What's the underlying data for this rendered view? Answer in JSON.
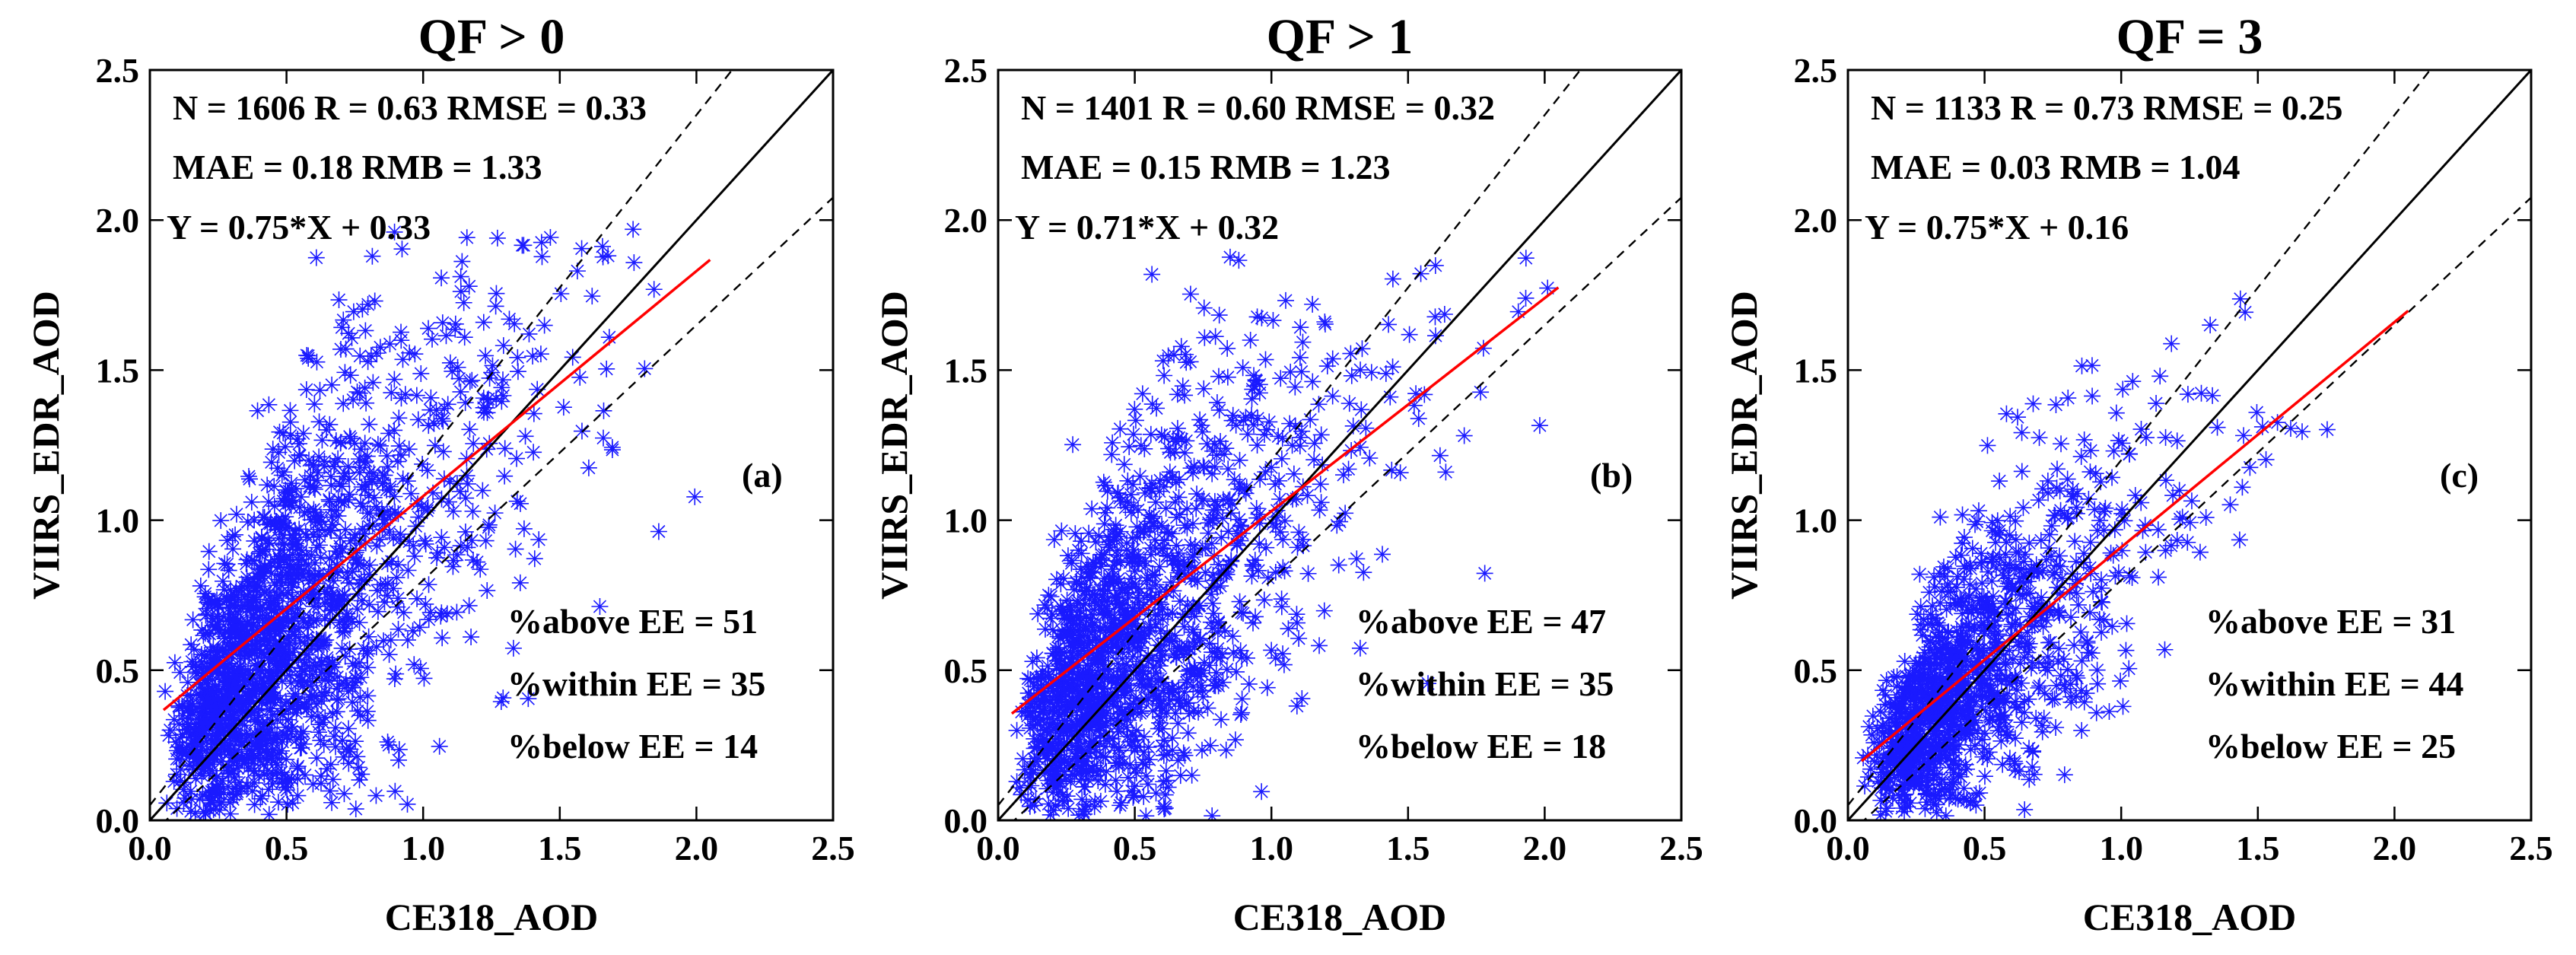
{
  "chart_data": [
    {
      "type": "scatter",
      "title": "QF > 0",
      "panel_label": "(a)",
      "xlabel": "CE318_AOD",
      "ylabel": "VIIRS_EDR_AOD",
      "xlim": [
        0.0,
        2.5
      ],
      "ylim": [
        0.0,
        2.5
      ],
      "xticks": [
        "0.0",
        "0.5",
        "1.0",
        "1.5",
        "2.0",
        "2.5"
      ],
      "yticks": [
        "0.0",
        "0.5",
        "1.0",
        "1.5",
        "2.0",
        "2.5"
      ],
      "stats_line1": "N = 1606  R = 0.63  RMSE = 0.33",
      "stats_line2": "MAE = 0.18   RMB = 1.33",
      "equation": "Y = 0.75*X + 0.33",
      "pct_above": "%above EE = 51",
      "pct_within": "%within EE = 35",
      "pct_below": "%below EE = 14",
      "n_points": 1606,
      "fit": {
        "slope": 0.75,
        "intercept": 0.33,
        "x_range": [
          0.05,
          2.05
        ]
      },
      "ee": {
        "upper": [
          1.15,
          0.05
        ],
        "lower": [
          0.85,
          -0.05
        ]
      },
      "scatter": {
        "x_median": 0.48,
        "x_sigma": 0.62,
        "scatter_sigma": 0.33,
        "y_bias": 0.1,
        "x_max": 2.05,
        "y_max": 2.0,
        "seed": 11
      }
    },
    {
      "type": "scatter",
      "title": "QF > 1",
      "panel_label": "(b)",
      "xlabel": "CE318_AOD",
      "ylabel": "VIIRS_EDR_AOD",
      "xlim": [
        0.0,
        2.5
      ],
      "ylim": [
        0.0,
        2.5
      ],
      "xticks": [
        "0.0",
        "0.5",
        "1.0",
        "1.5",
        "2.0",
        "2.5"
      ],
      "yticks": [
        "0.0",
        "0.5",
        "1.0",
        "1.5",
        "2.0",
        "2.5"
      ],
      "stats_line1": "N = 1401 R = 0.60 RMSE = 0.32",
      "stats_line2": "MAE = 0.15   RMB = 1.23",
      "equation": "Y = 0.71*X + 0.32",
      "pct_above": "%above EE = 47",
      "pct_within": "%within EE = 35",
      "pct_below": "%below EE = 18",
      "n_points": 1401,
      "fit": {
        "slope": 0.71,
        "intercept": 0.32,
        "x_range": [
          0.05,
          2.05
        ]
      },
      "ee": {
        "upper": [
          1.15,
          0.05
        ],
        "lower": [
          0.85,
          -0.05
        ]
      },
      "scatter": {
        "x_median": 0.45,
        "x_sigma": 0.62,
        "scatter_sigma": 0.32,
        "y_bias": 0.07,
        "x_max": 2.05,
        "y_max": 1.9,
        "seed": 23
      }
    },
    {
      "type": "scatter",
      "title": "QF = 3",
      "panel_label": "(c)",
      "xlabel": "CE318_AOD",
      "ylabel": "VIIRS_EDR_AOD",
      "xlim": [
        0.0,
        2.5
      ],
      "ylim": [
        0.0,
        2.5
      ],
      "xticks": [
        "0.0",
        "0.5",
        "1.0",
        "1.5",
        "2.0",
        "2.5"
      ],
      "yticks": [
        "0.0",
        "0.5",
        "1.0",
        "1.5",
        "2.0",
        "2.5"
      ],
      "stats_line1": "N = 1133  R = 0.73  RMSE = 0.25",
      "stats_line2": "MAE = 0.03  RMB = 1.04",
      "equation": "Y = 0.75*X + 0.16",
      "pct_above": "%above EE = 31",
      "pct_within": "%within EE = 44",
      "pct_below": "%below EE = 25",
      "n_points": 1133,
      "fit": {
        "slope": 0.75,
        "intercept": 0.16,
        "x_range": [
          0.05,
          2.05
        ]
      },
      "ee": {
        "upper": [
          1.15,
          0.05
        ],
        "lower": [
          0.85,
          -0.05
        ]
      },
      "scatter": {
        "x_median": 0.42,
        "x_sigma": 0.6,
        "scatter_sigma": 0.24,
        "y_bias": 0.02,
        "x_max": 2.05,
        "y_max": 1.75,
        "seed": 37
      }
    }
  ],
  "colors": {
    "points": "#1a1aff",
    "fit_line": "#ff0000",
    "one_to_one": "#000000",
    "ee_lines": "#000000"
  }
}
